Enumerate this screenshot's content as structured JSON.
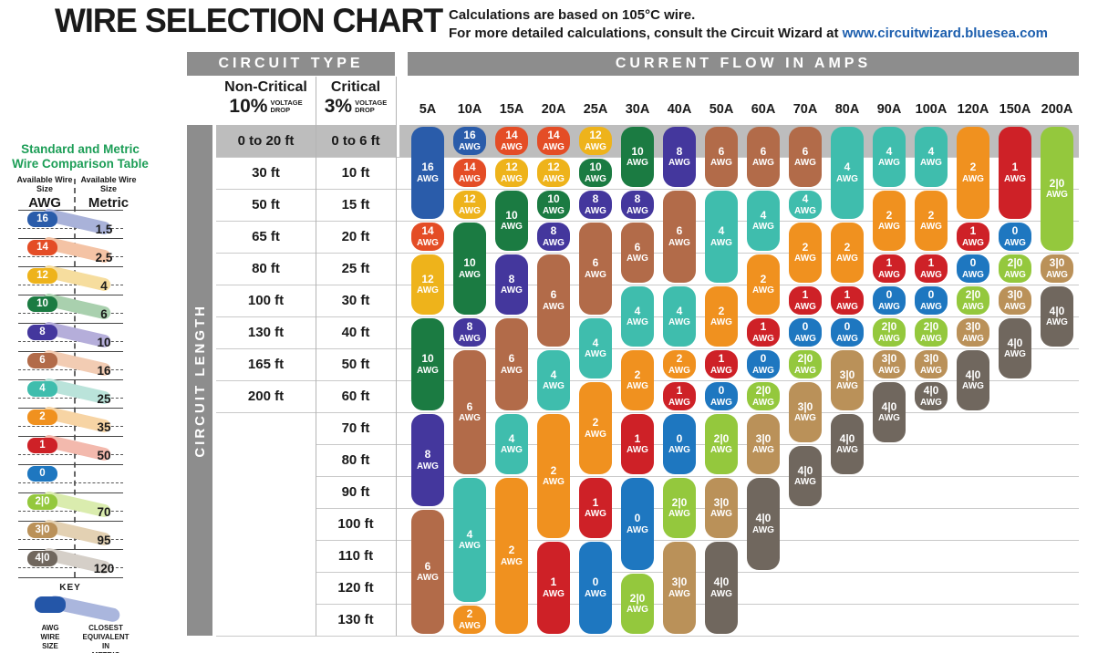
{
  "title": "WIRE SELECTION CHART",
  "note": {
    "line1": "Calculations are based on 105°C wire.",
    "line2": "For more detailed calculations, consult the Circuit Wizard at ",
    "link": "www.circuitwizard.bluesea.com"
  },
  "sidebar": {
    "title_line1": "Standard and Metric",
    "title_line2": "Wire Comparison Table",
    "col_awg_header": "Available Wire Size",
    "col_awg_sub": "AWG",
    "col_metric_header": "Available Wire Size",
    "col_metric_sub": "Metric",
    "entries": [
      {
        "awg": "16",
        "metric": "1.5",
        "color": "#2a5caa",
        "tail": "#a9b2d9"
      },
      {
        "awg": "14",
        "metric": "2.5",
        "color": "#e44d26",
        "tail": "#f4c3a5"
      },
      {
        "awg": "12",
        "metric": "4",
        "color": "#eeb31b",
        "tail": "#f6dd9e"
      },
      {
        "awg": "10",
        "metric": "6",
        "color": "#1b7b42",
        "tail": "#a9d0ae"
      },
      {
        "awg": "8",
        "metric": "10",
        "color": "#44379d",
        "tail": "#b5aeda"
      },
      {
        "awg": "6",
        "metric": "16",
        "color": "#b26b49",
        "tail": "#f2ccb3"
      },
      {
        "awg": "4",
        "metric": "25",
        "color": "#3fbdad",
        "tail": "#bae3da"
      },
      {
        "awg": "2",
        "metric": "35",
        "color": "#f0911f",
        "tail": "#f7d4a4"
      },
      {
        "awg": "1",
        "metric": "50",
        "color": "#ce2127",
        "tail": "#f3b9ad"
      },
      {
        "awg": "0",
        "metric": "",
        "color": "#1e77c0",
        "tail": ""
      },
      {
        "awg": "2|0",
        "metric": "70",
        "color": "#94c83d",
        "tail": "#daecae"
      },
      {
        "awg": "3|0",
        "metric": "95",
        "color": "#ba9159",
        "tail": "#e3d1b3"
      },
      {
        "awg": "4|0",
        "metric": "120",
        "color": "#70675e",
        "tail": "#d5cfc8"
      }
    ],
    "key": {
      "title": "KEY",
      "awg_label": "AWG WIRE SIZE",
      "metric_label": "CLOSEST EQUIVALENT IN METRIC"
    }
  },
  "table": {
    "circuit_type_header": "CIRCUIT TYPE",
    "current_flow_header": "CURRENT FLOW IN AMPS",
    "circuit_length_label": "CIRCUIT LENGTH",
    "noncritical": {
      "title": "Non-Critical",
      "pct": "10%",
      "sub1": "VOLTAGE",
      "sub2": "DROP"
    },
    "critical": {
      "title": "Critical",
      "pct": "3%",
      "sub1": "VOLTAGE",
      "sub2": "DROP"
    },
    "amp_columns": [
      "5A",
      "10A",
      "15A",
      "20A",
      "25A",
      "30A",
      "40A",
      "50A",
      "60A",
      "70A",
      "80A",
      "90A",
      "100A",
      "120A",
      "150A",
      "200A"
    ],
    "length_rows": [
      {
        "noncritical": "0 to 20 ft",
        "critical": "0 to 6 ft"
      },
      {
        "noncritical": "30 ft",
        "critical": "10 ft"
      },
      {
        "noncritical": "50 ft",
        "critical": "15 ft"
      },
      {
        "noncritical": "65 ft",
        "critical": "20 ft"
      },
      {
        "noncritical": "80 ft",
        "critical": "25 ft"
      },
      {
        "noncritical": "100 ft",
        "critical": "30 ft"
      },
      {
        "noncritical": "130 ft",
        "critical": "40 ft"
      },
      {
        "noncritical": "165 ft",
        "critical": "50 ft"
      },
      {
        "noncritical": "200 ft",
        "critical": "60 ft"
      },
      {
        "noncritical": "",
        "critical": "70 ft"
      },
      {
        "noncritical": "",
        "critical": "80 ft"
      },
      {
        "noncritical": "",
        "critical": "90 ft"
      },
      {
        "noncritical": "",
        "critical": "100 ft"
      },
      {
        "noncritical": "",
        "critical": "110 ft"
      },
      {
        "noncritical": "",
        "critical": "120 ft"
      },
      {
        "noncritical": "",
        "critical": "130 ft"
      }
    ],
    "awg_unit": "AWG",
    "wire_colors": {
      "16": "#2a5caa",
      "14": "#e44d26",
      "12": "#eeb31b",
      "10": "#1b7b42",
      "8": "#44379d",
      "6": "#b26b49",
      "4": "#3fbdad",
      "2": "#f0911f",
      "1": "#ce2127",
      "0": "#1e77c0",
      "2|0": "#94c83d",
      "3|0": "#ba9159",
      "4|0": "#70675e"
    },
    "segments": [
      [
        0,
        "16",
        1,
        3
      ],
      [
        0,
        "14",
        4,
        4
      ],
      [
        0,
        "12",
        5,
        6
      ],
      [
        0,
        "10",
        7,
        9
      ],
      [
        0,
        "8",
        10,
        12
      ],
      [
        0,
        "6",
        13,
        16
      ],
      [
        1,
        "16",
        1,
        1
      ],
      [
        1,
        "14",
        2,
        2
      ],
      [
        1,
        "12",
        3,
        3
      ],
      [
        1,
        "10",
        4,
        6
      ],
      [
        1,
        "8",
        7,
        7
      ],
      [
        1,
        "6",
        8,
        11
      ],
      [
        1,
        "4",
        12,
        15
      ],
      [
        1,
        "2",
        16,
        16
      ],
      [
        2,
        "14",
        1,
        1
      ],
      [
        2,
        "12",
        2,
        2
      ],
      [
        2,
        "10",
        3,
        4
      ],
      [
        2,
        "8",
        5,
        6
      ],
      [
        2,
        "6",
        7,
        9
      ],
      [
        2,
        "4",
        10,
        11
      ],
      [
        2,
        "2",
        12,
        16
      ],
      [
        3,
        "14",
        1,
        1
      ],
      [
        3,
        "12",
        2,
        2
      ],
      [
        3,
        "10",
        3,
        3
      ],
      [
        3,
        "8",
        4,
        4
      ],
      [
        3,
        "6",
        5,
        7
      ],
      [
        3,
        "4",
        8,
        9
      ],
      [
        3,
        "2",
        10,
        13
      ],
      [
        3,
        "1",
        14,
        16
      ],
      [
        4,
        "12",
        1,
        1
      ],
      [
        4,
        "10",
        2,
        2
      ],
      [
        4,
        "8",
        3,
        3
      ],
      [
        4,
        "6",
        4,
        6
      ],
      [
        4,
        "4",
        7,
        8
      ],
      [
        4,
        "2",
        9,
        11
      ],
      [
        4,
        "1",
        12,
        13
      ],
      [
        4,
        "0",
        14,
        16
      ],
      [
        5,
        "10",
        1,
        2
      ],
      [
        5,
        "8",
        3,
        3
      ],
      [
        5,
        "6",
        4,
        5
      ],
      [
        5,
        "4",
        6,
        7
      ],
      [
        5,
        "2",
        8,
        9
      ],
      [
        5,
        "1",
        10,
        11
      ],
      [
        5,
        "0",
        12,
        14
      ],
      [
        5,
        "2|0",
        15,
        16
      ],
      [
        6,
        "8",
        1,
        2
      ],
      [
        6,
        "6",
        3,
        5
      ],
      [
        6,
        "4",
        6,
        7
      ],
      [
        6,
        "2",
        8,
        8
      ],
      [
        6,
        "1",
        9,
        9
      ],
      [
        6,
        "0",
        10,
        11
      ],
      [
        6,
        "2|0",
        12,
        13
      ],
      [
        6,
        "3|0",
        14,
        16
      ],
      [
        7,
        "6",
        1,
        2
      ],
      [
        7,
        "4",
        3,
        5
      ],
      [
        7,
        "2",
        6,
        7
      ],
      [
        7,
        "1",
        8,
        8
      ],
      [
        7,
        "0",
        9,
        9
      ],
      [
        7,
        "2|0",
        10,
        11
      ],
      [
        7,
        "3|0",
        12,
        13
      ],
      [
        7,
        "4|0",
        14,
        16
      ],
      [
        8,
        "6",
        1,
        2
      ],
      [
        8,
        "4",
        3,
        4
      ],
      [
        8,
        "2",
        5,
        6
      ],
      [
        8,
        "1",
        7,
        7
      ],
      [
        8,
        "0",
        8,
        8
      ],
      [
        8,
        "2|0",
        9,
        9
      ],
      [
        8,
        "3|0",
        10,
        11
      ],
      [
        8,
        "4|0",
        12,
        14
      ],
      [
        9,
        "6",
        1,
        2
      ],
      [
        9,
        "4",
        3,
        3
      ],
      [
        9,
        "2",
        4,
        5
      ],
      [
        9,
        "1",
        6,
        6
      ],
      [
        9,
        "0",
        7,
        7
      ],
      [
        9,
        "2|0",
        8,
        8
      ],
      [
        9,
        "3|0",
        9,
        10
      ],
      [
        9,
        "4|0",
        11,
        12
      ],
      [
        10,
        "4",
        1,
        3
      ],
      [
        10,
        "2",
        4,
        5
      ],
      [
        10,
        "1",
        6,
        6
      ],
      [
        10,
        "0",
        7,
        7
      ],
      [
        10,
        "3|0",
        8,
        9
      ],
      [
        10,
        "4|0",
        10,
        11
      ],
      [
        11,
        "4",
        1,
        2
      ],
      [
        11,
        "2",
        3,
        4
      ],
      [
        11,
        "1",
        5,
        5
      ],
      [
        11,
        "0",
        6,
        6
      ],
      [
        11,
        "2|0",
        7,
        7
      ],
      [
        11,
        "3|0",
        8,
        8
      ],
      [
        11,
        "4|0",
        9,
        10
      ],
      [
        12,
        "4",
        1,
        2
      ],
      [
        12,
        "2",
        3,
        4
      ],
      [
        12,
        "1",
        5,
        5
      ],
      [
        12,
        "0",
        6,
        6
      ],
      [
        12,
        "2|0",
        7,
        7
      ],
      [
        12,
        "3|0",
        8,
        8
      ],
      [
        12,
        "4|0",
        9,
        9
      ],
      [
        13,
        "2",
        1,
        3
      ],
      [
        13,
        "1",
        4,
        4
      ],
      [
        13,
        "0",
        5,
        5
      ],
      [
        13,
        "2|0",
        6,
        6
      ],
      [
        13,
        "3|0",
        7,
        7
      ],
      [
        13,
        "4|0",
        8,
        9
      ],
      [
        14,
        "1",
        1,
        3
      ],
      [
        14,
        "0",
        4,
        4
      ],
      [
        14,
        "2|0",
        5,
        5
      ],
      [
        14,
        "3|0",
        6,
        6
      ],
      [
        14,
        "4|0",
        7,
        8
      ],
      [
        15,
        "2|0",
        1,
        4
      ],
      [
        15,
        "3|0",
        5,
        5
      ],
      [
        15,
        "4|0",
        6,
        7
      ]
    ]
  },
  "chart_data": {
    "type": "table",
    "title": "WIRE SELECTION CHART",
    "notes": [
      "Calculations are based on 105°C wire.",
      "For more detailed calculations, consult the Circuit Wizard at www.circuitwizard.bluesea.com"
    ],
    "columns_amps": [
      "5A",
      "10A",
      "15A",
      "20A",
      "25A",
      "30A",
      "40A",
      "50A",
      "60A",
      "70A",
      "80A",
      "90A",
      "100A",
      "120A",
      "150A",
      "200A"
    ],
    "rows_circuit_length": [
      {
        "noncritical_10pct": "0 to 20 ft",
        "critical_3pct": "0 to 6 ft"
      },
      {
        "noncritical_10pct": "30 ft",
        "critical_3pct": "10 ft"
      },
      {
        "noncritical_10pct": "50 ft",
        "critical_3pct": "15 ft"
      },
      {
        "noncritical_10pct": "65 ft",
        "critical_3pct": "20 ft"
      },
      {
        "noncritical_10pct": "80 ft",
        "critical_3pct": "25 ft"
      },
      {
        "noncritical_10pct": "100 ft",
        "critical_3pct": "30 ft"
      },
      {
        "noncritical_10pct": "130 ft",
        "critical_3pct": "40 ft"
      },
      {
        "noncritical_10pct": "165 ft",
        "critical_3pct": "50 ft"
      },
      {
        "noncritical_10pct": "200 ft",
        "critical_3pct": "60 ft"
      },
      {
        "noncritical_10pct": "",
        "critical_3pct": "70 ft"
      },
      {
        "noncritical_10pct": "",
        "critical_3pct": "80 ft"
      },
      {
        "noncritical_10pct": "",
        "critical_3pct": "90 ft"
      },
      {
        "noncritical_10pct": "",
        "critical_3pct": "100 ft"
      },
      {
        "noncritical_10pct": "",
        "critical_3pct": "110 ft"
      },
      {
        "noncritical_10pct": "",
        "critical_3pct": "120 ft"
      },
      {
        "noncritical_10pct": "",
        "critical_3pct": "130 ft"
      }
    ],
    "awg_matrix": [
      [
        "16",
        "16",
        "14",
        "14",
        "12",
        "10",
        "8",
        "6",
        "6",
        "6",
        "4",
        "4",
        "4",
        "2",
        "1",
        "2|0"
      ],
      [
        "16",
        "14",
        "12",
        "12",
        "10",
        "10",
        "8",
        "6",
        "6",
        "6",
        "4",
        "4",
        "4",
        "2",
        "1",
        "2|0"
      ],
      [
        "16",
        "12",
        "10",
        "10",
        "8",
        "8",
        "6",
        "4",
        "4",
        "4",
        "4",
        "2",
        "2",
        "2",
        "1",
        "2|0"
      ],
      [
        "14",
        "10",
        "10",
        "8",
        "6",
        "6",
        "6",
        "4",
        "4",
        "2",
        "2",
        "2",
        "2",
        "1",
        "0",
        "2|0"
      ],
      [
        "12",
        "10",
        "8",
        "6",
        "6",
        "6",
        "6",
        "4",
        "2",
        "2",
        "2",
        "1",
        "1",
        "0",
        "2|0",
        "3|0"
      ],
      [
        "12",
        "10",
        "8",
        "6",
        "6",
        "4",
        "4",
        "2",
        "2",
        "1",
        "1",
        "0",
        "0",
        "2|0",
        "3|0",
        "4|0"
      ],
      [
        "10",
        "8",
        "6",
        "6",
        "4",
        "4",
        "4",
        "2",
        "1",
        "0",
        "0",
        "2|0",
        "2|0",
        "3|0",
        "4|0",
        "4|0"
      ],
      [
        "10",
        "6",
        "6",
        "4",
        "4",
        "2",
        "2",
        "1",
        "0",
        "2|0",
        "3|0",
        "3|0",
        "3|0",
        "4|0",
        "4|0",
        ""
      ],
      [
        "10",
        "6",
        "6",
        "4",
        "2",
        "2",
        "1",
        "0",
        "2|0",
        "3|0",
        "3|0",
        "4|0",
        "4|0",
        "4|0",
        "",
        ""
      ],
      [
        "8",
        "6",
        "4",
        "2",
        "2",
        "1",
        "0",
        "2|0",
        "3|0",
        "3|0",
        "4|0",
        "4|0",
        "",
        "",
        "",
        ""
      ],
      [
        "8",
        "6",
        "4",
        "2",
        "2",
        "1",
        "0",
        "2|0",
        "3|0",
        "4|0",
        "4|0",
        "",
        "",
        "",
        "",
        ""
      ],
      [
        "8",
        "4",
        "2",
        "2",
        "1",
        "0",
        "2|0",
        "3|0",
        "4|0",
        "4|0",
        "",
        "",
        "",
        "",
        "",
        ""
      ],
      [
        "6",
        "4",
        "2",
        "2",
        "1",
        "0",
        "2|0",
        "3|0",
        "4|0",
        "",
        "",
        "",
        "",
        "",
        "",
        ""
      ],
      [
        "6",
        "4",
        "2",
        "1",
        "0",
        "0",
        "3|0",
        "4|0",
        "4|0",
        "",
        "",
        "",
        "",
        "",
        "",
        ""
      ],
      [
        "6",
        "4",
        "2",
        "1",
        "0",
        "2|0",
        "3|0",
        "4|0",
        "",
        "",
        "",
        "",
        "",
        "",
        "",
        ""
      ],
      [
        "6",
        "2",
        "2",
        "1",
        "0",
        "2|0",
        "3|0",
        "4|0",
        "",
        "",
        "",
        "",
        "",
        "",
        "",
        ""
      ]
    ],
    "standard_metric_comparison": [
      {
        "awg": "16",
        "metric_mm2": "1.5"
      },
      {
        "awg": "14",
        "metric_mm2": "2.5"
      },
      {
        "awg": "12",
        "metric_mm2": "4"
      },
      {
        "awg": "10",
        "metric_mm2": "6"
      },
      {
        "awg": "8",
        "metric_mm2": "10"
      },
      {
        "awg": "6",
        "metric_mm2": "16"
      },
      {
        "awg": "4",
        "metric_mm2": "25"
      },
      {
        "awg": "2",
        "metric_mm2": "35"
      },
      {
        "awg": "1",
        "metric_mm2": "50"
      },
      {
        "awg": "0",
        "metric_mm2": ""
      },
      {
        "awg": "2|0",
        "metric_mm2": "70"
      },
      {
        "awg": "3|0",
        "metric_mm2": "95"
      },
      {
        "awg": "4|0",
        "metric_mm2": "120"
      }
    ],
    "legend_position": "bottom-left",
    "grid": true
  }
}
